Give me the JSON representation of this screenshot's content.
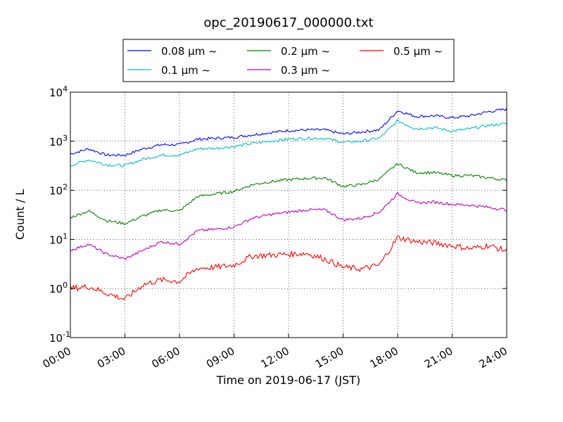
{
  "chart_data": {
    "type": "line",
    "title": "opc_20190617_000000.txt",
    "xlabel": "Time on 2019-06-17 (JST)",
    "ylabel": "Count / L",
    "yscale": "log",
    "ylim": [
      0.1,
      10000
    ],
    "xlim": [
      "00:00",
      "24:00"
    ],
    "x_ticks": [
      "00:00",
      "03:00",
      "06:00",
      "09:00",
      "12:00",
      "15:00",
      "18:00",
      "21:00",
      "24:00"
    ],
    "y_ticks": [
      {
        "base": "10",
        "exp": "-1"
      },
      {
        "base": "10",
        "exp": "0"
      },
      {
        "base": "10",
        "exp": "1"
      },
      {
        "base": "10",
        "exp": "2"
      },
      {
        "base": "10",
        "exp": "3"
      },
      {
        "base": "10",
        "exp": "4"
      }
    ],
    "grid": true,
    "legend_position": "top-center",
    "x": [
      "00:00",
      "01:00",
      "02:00",
      "03:00",
      "04:00",
      "05:00",
      "06:00",
      "07:00",
      "08:00",
      "09:00",
      "10:00",
      "11:00",
      "12:00",
      "13:00",
      "14:00",
      "15:00",
      "16:00",
      "17:00",
      "18:00",
      "19:00",
      "20:00",
      "21:00",
      "22:00",
      "23:00",
      "24:00"
    ],
    "series": [
      {
        "name": "0.08",
        "unit": "μm",
        "suffix": "~",
        "color": "#0000ff",
        "values": [
          550,
          700,
          520,
          520,
          700,
          850,
          850,
          1100,
          1150,
          1200,
          1350,
          1500,
          1650,
          1700,
          1700,
          1400,
          1550,
          1700,
          4200,
          3200,
          3300,
          3000,
          3300,
          4000,
          4500
        ]
      },
      {
        "name": "0.1",
        "unit": "μm",
        "suffix": "~",
        "color": "#00bfbf",
        "values": [
          320,
          420,
          330,
          320,
          430,
          520,
          520,
          700,
          720,
          780,
          900,
          1000,
          1100,
          1150,
          1150,
          950,
          1000,
          1150,
          2600,
          1800,
          1900,
          1600,
          1800,
          2100,
          2300
        ]
      },
      {
        "name": "0.2",
        "unit": "μm",
        "suffix": "~",
        "color": "#008000",
        "values": [
          28,
          38,
          24,
          21,
          30,
          40,
          38,
          75,
          85,
          95,
          130,
          150,
          165,
          175,
          180,
          120,
          130,
          170,
          350,
          230,
          230,
          200,
          200,
          180,
          160
        ]
      },
      {
        "name": "0.3",
        "unit": "μm",
        "suffix": "~",
        "color": "#bf00bf",
        "values": [
          6,
          8,
          5,
          4,
          6,
          9,
          8,
          15,
          16,
          18,
          27,
          32,
          36,
          40,
          40,
          25,
          27,
          36,
          85,
          55,
          58,
          52,
          50,
          45,
          40
        ]
      },
      {
        "name": "0.5",
        "unit": "μm",
        "suffix": "~",
        "color": "#ff0000",
        "values": [
          1.0,
          1.1,
          0.8,
          0.6,
          1.2,
          1.5,
          1.4,
          2.6,
          2.7,
          3.0,
          4.6,
          4.8,
          5.0,
          5.2,
          4.0,
          2.7,
          2.5,
          3.0,
          11,
          9,
          8.5,
          7.5,
          6.5,
          7.5,
          5.8
        ]
      }
    ]
  }
}
